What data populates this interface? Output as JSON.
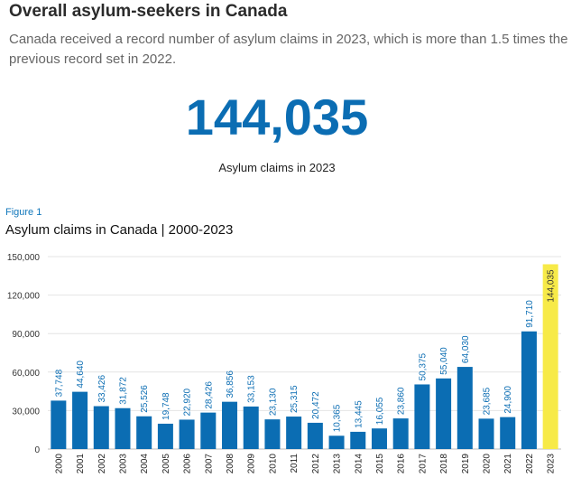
{
  "header": {
    "title": "Overall asylum-seekers in Canada",
    "intro": "Canada received a record number of asylum claims in 2023, which is more than 1.5 times the previous record set in 2022."
  },
  "highlight": {
    "value": "144,035",
    "caption": "Asylum claims in 2023"
  },
  "figure": {
    "label": "Figure 1"
  },
  "colors": {
    "bar": "#0b6db3",
    "highlight_bar": "#f7ea48",
    "highlight_label": "#333333",
    "accent": "#0b6db3"
  },
  "chart_data": {
    "type": "bar",
    "title": "Asylum claims in Canada | 2000-2023",
    "xlabel": "",
    "ylabel": "",
    "ylim": [
      0,
      150000
    ],
    "yticks": [
      0,
      30000,
      60000,
      90000,
      120000,
      150000
    ],
    "ytick_labels": [
      "0",
      "30,000",
      "60,000",
      "90,000",
      "120,000",
      "150,000"
    ],
    "categories": [
      "2000",
      "2001",
      "2002",
      "2003",
      "2004",
      "2005",
      "2006",
      "2007",
      "2008",
      "2009",
      "2010",
      "2011",
      "2012",
      "2013",
      "2014",
      "2015",
      "2016",
      "2017",
      "2018",
      "2019",
      "2020",
      "2021",
      "2022",
      "2023"
    ],
    "values": [
      37748,
      44640,
      33426,
      31872,
      25526,
      19748,
      22920,
      28426,
      36856,
      33153,
      23130,
      25315,
      20472,
      10365,
      13445,
      16055,
      23860,
      50375,
      55040,
      64030,
      23685,
      24900,
      91710,
      144035
    ],
    "value_labels": [
      "37,748",
      "44,640",
      "33,426",
      "31,872",
      "25,526",
      "19,748",
      "22,920",
      "28,426",
      "36,856",
      "33,153",
      "23,130",
      "25,315",
      "20,472",
      "10,365",
      "13,445",
      "16,055",
      "23,860",
      "50,375",
      "55,040",
      "64,030",
      "23,685",
      "24,900",
      "91,710",
      "144,035"
    ],
    "highlight_category": "2023",
    "grid": true,
    "legend": "none"
  }
}
